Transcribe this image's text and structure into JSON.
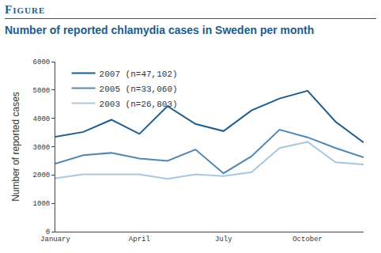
{
  "chart_data": {
    "type": "line",
    "figure_label": "Figure",
    "title": "Number of reported chlamydia cases in Sweden per month",
    "y_label": "Number of reported cases",
    "categories": [
      "January",
      null,
      null,
      "April",
      null,
      null,
      "July",
      null,
      null,
      "October",
      null,
      null
    ],
    "series": [
      {
        "name": "2007 (n=47,102)",
        "color": "#1d5c8e",
        "values": [
          3350,
          3520,
          3950,
          3450,
          4430,
          3800,
          3550,
          4280,
          4700,
          4970,
          3880,
          3150
        ]
      },
      {
        "name": "2005 (n=33,060)",
        "color": "#4f88b5",
        "values": [
          2400,
          2700,
          2780,
          2580,
          2500,
          2900,
          2060,
          2660,
          3600,
          3330,
          2950,
          2620
        ]
      },
      {
        "name": "2003 (n=26,803)",
        "color": "#a8c8e0",
        "values": [
          1880,
          2020,
          2020,
          2020,
          1860,
          2020,
          1960,
          2100,
          2950,
          3170,
          2450,
          2370
        ]
      }
    ],
    "ylim": [
      0,
      6000
    ],
    "yticks": [
      0,
      1000,
      2000,
      3000,
      4000,
      5000,
      6000
    ],
    "grid": false,
    "legend": "top-left"
  }
}
